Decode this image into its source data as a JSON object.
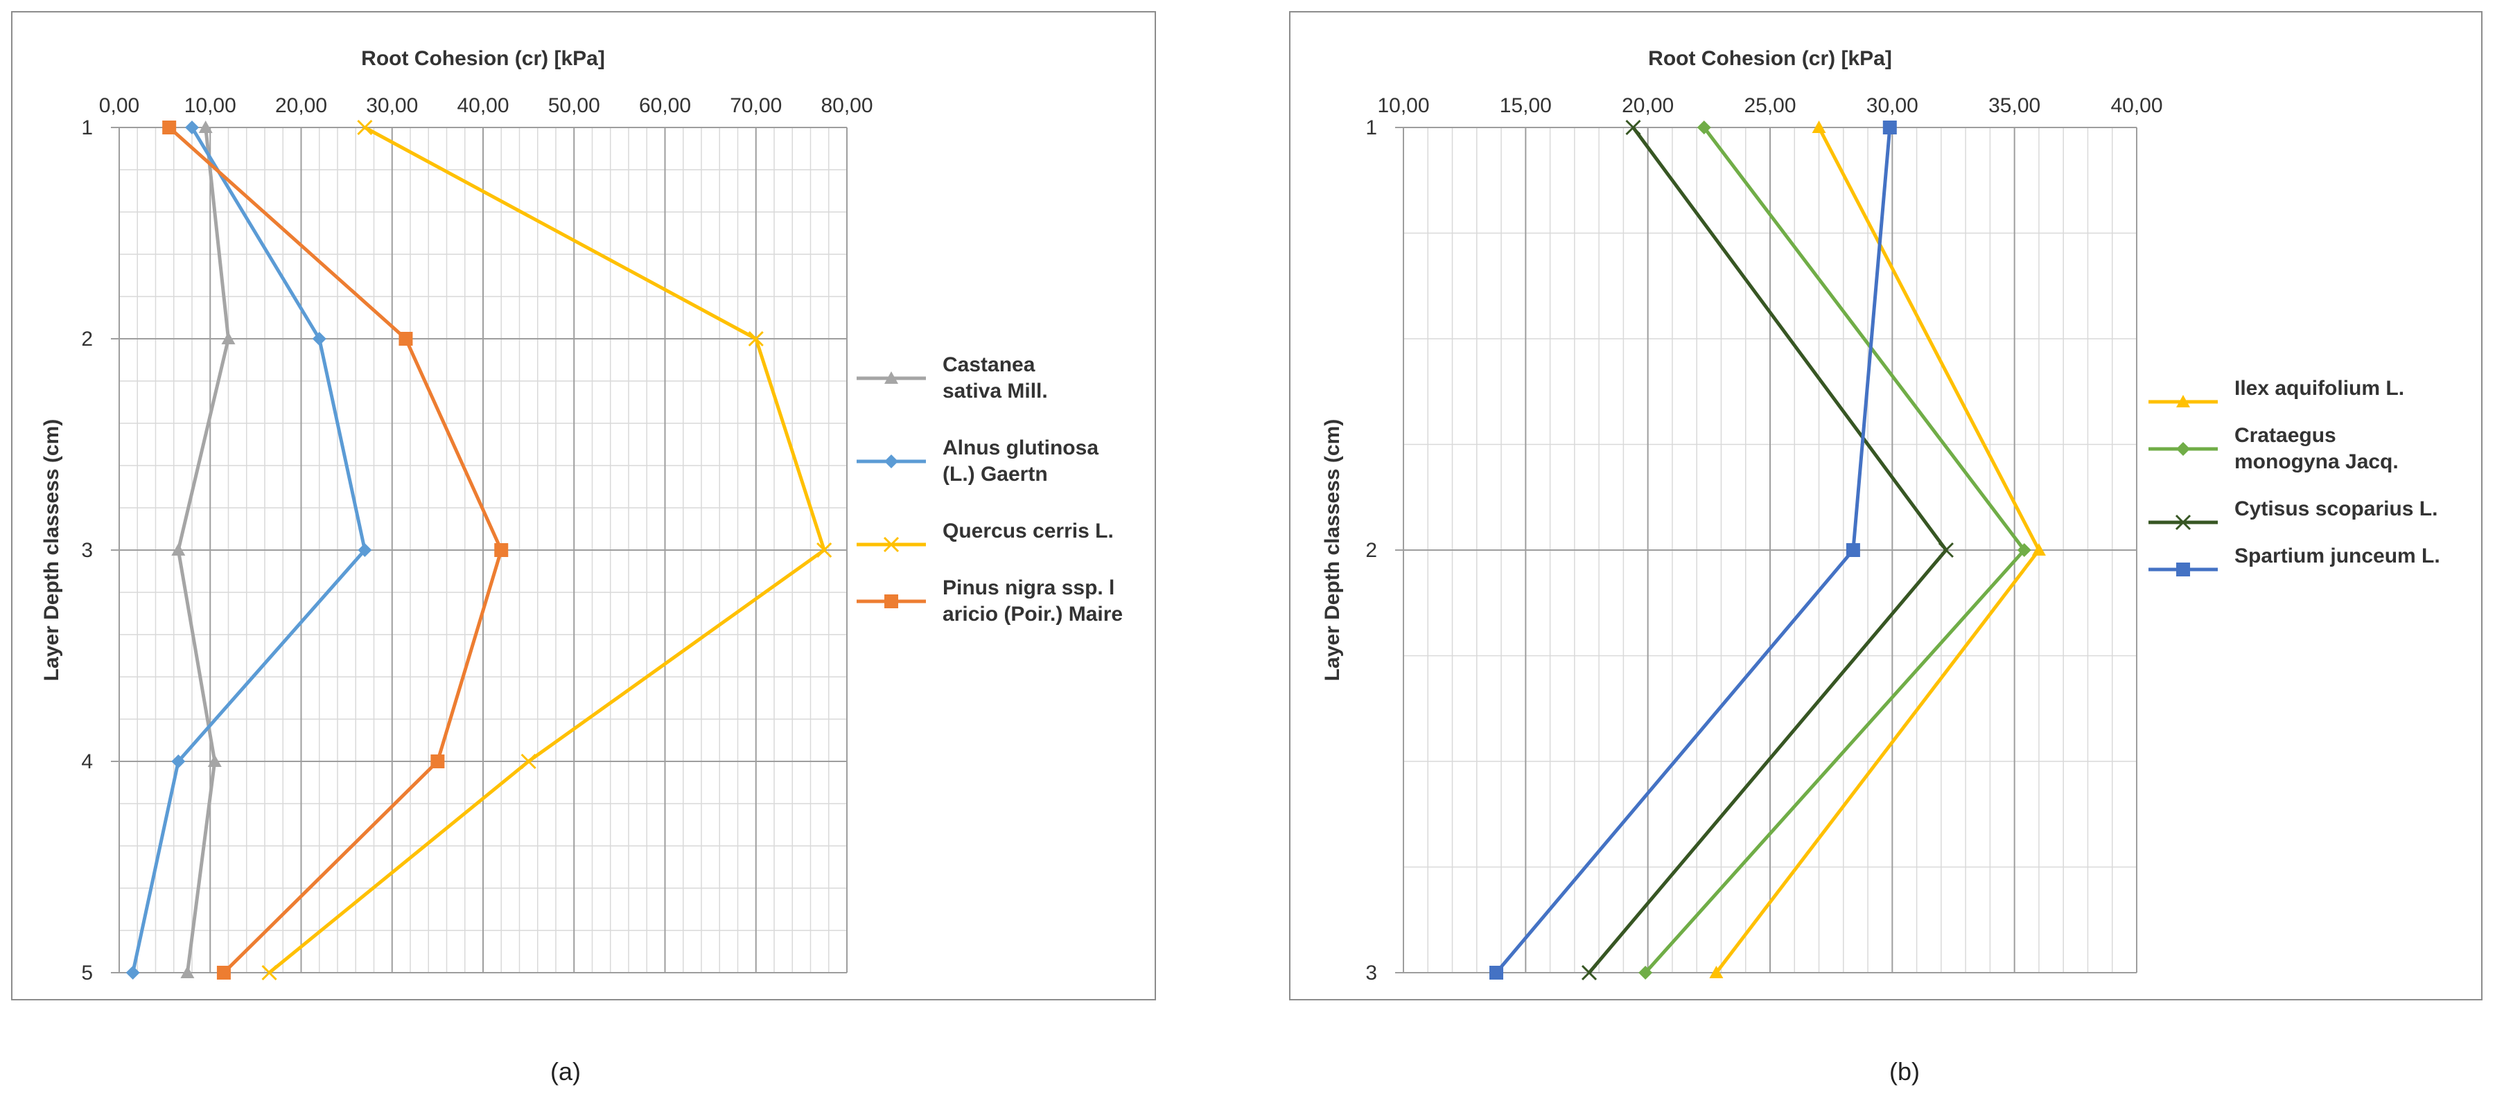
{
  "captions": {
    "a": "(a)",
    "b": "(b)"
  },
  "chart_data": [
    {
      "id": "a",
      "type": "line",
      "orientation": "depth-vertical",
      "xlabel": "Root Cohesion (cr) [kPa]",
      "ylabel": "Layer Depth classess (cm)",
      "xlim": [
        0,
        80
      ],
      "xticks": [
        "0,00",
        "10,00",
        "20,00",
        "30,00",
        "40,00",
        "50,00",
        "60,00",
        "70,00",
        "80,00"
      ],
      "yticks": [
        "1",
        "2",
        "3",
        "4",
        "5"
      ],
      "y": [
        1,
        2,
        3,
        4,
        5
      ],
      "grid": true,
      "legend_position": "right",
      "series": [
        {
          "name": "Castanea sativa Mill.",
          "legend_lines": [
            "Castanea",
            "sativa Mill."
          ],
          "color": "#a5a5a5",
          "marker": "triangle",
          "values": [
            9.5,
            12,
            6.5,
            10.5,
            7.5
          ]
        },
        {
          "name": "Alnus glutinosa (L.) Gaertn",
          "legend_lines": [
            "Alnus glutinosa",
            "(L.) Gaertn"
          ],
          "color": "#5b9bd5",
          "marker": "diamond",
          "values": [
            8,
            22,
            27,
            6.5,
            1.5
          ]
        },
        {
          "name": "Quercus cerris L.",
          "legend_lines": [
            "Quercus cerris L."
          ],
          "color": "#ffc000",
          "marker": "x",
          "values": [
            27,
            70,
            77.5,
            45,
            16.5
          ]
        },
        {
          "name": "Pinus nigra ssp. laricio (Poir.) Maire",
          "legend_lines": [
            "Pinus nigra ssp. l",
            "aricio (Poir.) Maire"
          ],
          "color": "#ed7d31",
          "marker": "square",
          "values": [
            5.5,
            31.5,
            42,
            35,
            11.5
          ]
        }
      ]
    },
    {
      "id": "b",
      "type": "line",
      "orientation": "depth-vertical",
      "xlabel": "Root Cohesion (cr) [kPa]",
      "ylabel": "Layer Depth classess (cm)",
      "xlim": [
        10,
        40
      ],
      "xticks": [
        "10,00",
        "15,00",
        "20,00",
        "25,00",
        "30,00",
        "35,00",
        "40,00"
      ],
      "yticks": [
        "1",
        "2",
        "3"
      ],
      "y": [
        1,
        2,
        3
      ],
      "grid": true,
      "legend_position": "right",
      "series": [
        {
          "name": "Ilex aquifolium L.",
          "legend_lines": [
            "Ilex aquifolium L."
          ],
          "color": "#ffc000",
          "marker": "triangle",
          "values": [
            27,
            36,
            22.8
          ]
        },
        {
          "name": "Crataegus monogyna Jacq.",
          "legend_lines": [
            "Crataegus",
            "monogyna Jacq."
          ],
          "color": "#70ad47",
          "marker": "diamond",
          "values": [
            22.3,
            35.4,
            19.9
          ]
        },
        {
          "name": "Cytisus scoparius L.",
          "legend_lines": [
            "Cytisus scoparius L."
          ],
          "color": "#375623",
          "marker": "x",
          "values": [
            19.4,
            32.2,
            17.6
          ]
        },
        {
          "name": "Spartium junceum L.",
          "legend_lines": [
            "Spartium junceum L."
          ],
          "color": "#4472c4",
          "marker": "square",
          "values": [
            29.9,
            28.4,
            13.8
          ]
        }
      ]
    }
  ]
}
